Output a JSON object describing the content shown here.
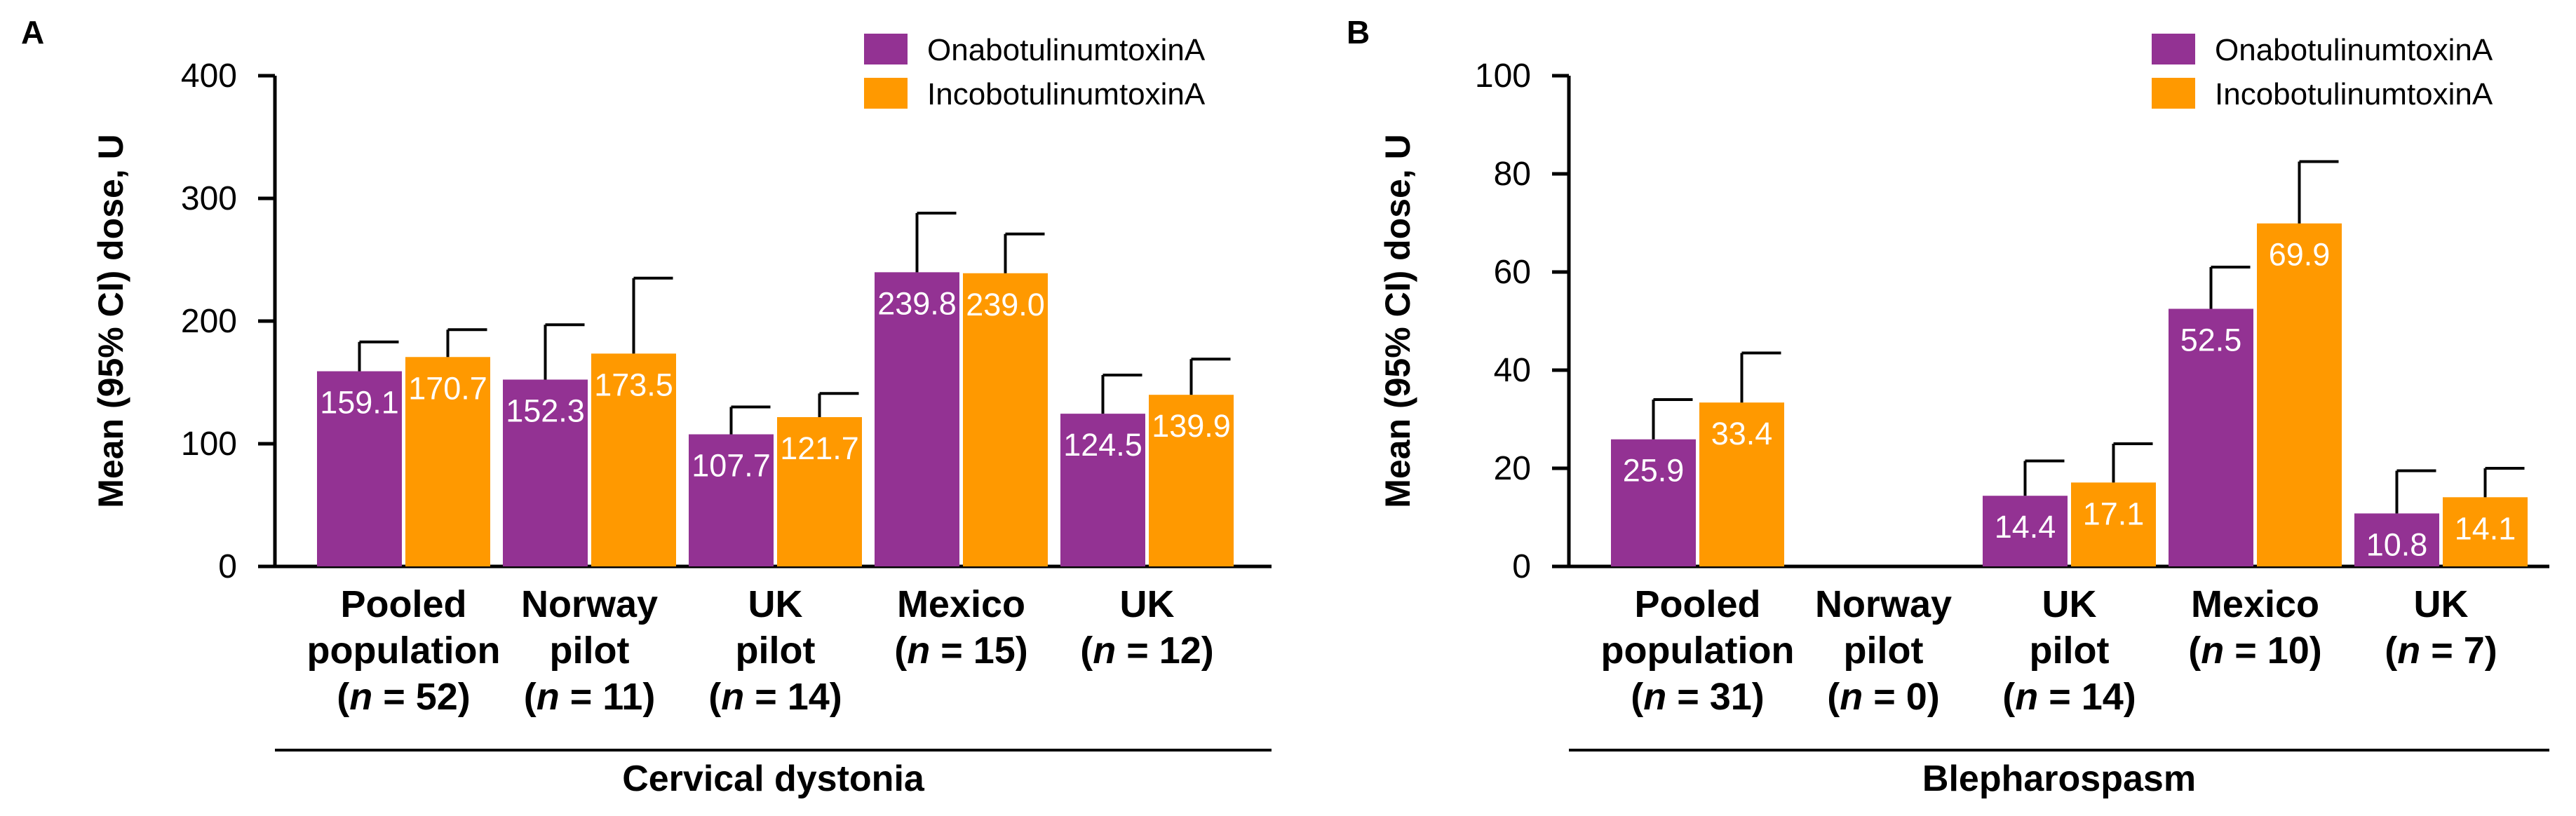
{
  "colors": {
    "onabotulinumtoxinA": "#933293",
    "incobotulinumtoxinA": "#FF9900",
    "axis": "#000000",
    "label_text": "#ffffff"
  },
  "chart_data": [
    {
      "panel_label": "A",
      "type": "bar",
      "ylabel": "Mean (95% CI) dose, U",
      "ylim": [
        0,
        400
      ],
      "yticks": [
        "0",
        "100",
        "200",
        "300",
        "400"
      ],
      "group_label": "Cervical dystonia",
      "categories": [
        {
          "lines": [
            "Pooled",
            "population",
            "(n = 52)"
          ]
        },
        {
          "lines": [
            "Norway",
            "pilot",
            "(n = 11)"
          ]
        },
        {
          "lines": [
            "UK",
            "pilot",
            "(n = 14)"
          ]
        },
        {
          "lines": [
            "Mexico",
            "(n = 15)"
          ]
        },
        {
          "lines": [
            "UK",
            "(n = 12)"
          ]
        }
      ],
      "series": [
        {
          "name": "OnabotulinumtoxinA",
          "values": [
            159.1,
            152.3,
            107.7,
            239.8,
            124.5
          ],
          "value_labels": [
            "159.1",
            "152.3",
            "107.7",
            "239.8",
            "124.5"
          ],
          "ci_upper": [
            183,
            197,
            130,
            288,
            156
          ]
        },
        {
          "name": "IncobotulinumtoxinA",
          "values": [
            170.7,
            173.5,
            121.7,
            239.0,
            139.9
          ],
          "value_labels": [
            "170.7",
            "173.5",
            "121.7",
            "239.0",
            "139.9"
          ],
          "ci_upper": [
            193,
            235,
            141,
            271,
            169
          ]
        }
      ]
    },
    {
      "panel_label": "B",
      "type": "bar",
      "ylabel": "Mean (95% CI) dose, U",
      "ylim": [
        0,
        100
      ],
      "yticks": [
        "0",
        "20",
        "40",
        "60",
        "80",
        "100"
      ],
      "group_label": "Blepharospasm",
      "categories": [
        {
          "lines": [
            "Pooled",
            "population",
            "(n = 31)"
          ]
        },
        {
          "lines": [
            "Norway",
            "pilot",
            "(n = 0)"
          ]
        },
        {
          "lines": [
            "UK",
            "pilot",
            "(n = 14)"
          ]
        },
        {
          "lines": [
            "Mexico",
            "(n = 10)"
          ]
        },
        {
          "lines": [
            "UK",
            "(n = 7)"
          ]
        }
      ],
      "series": [
        {
          "name": "OnabotulinumtoxinA",
          "values": [
            25.9,
            null,
            14.4,
            52.5,
            10.8
          ],
          "value_labels": [
            "25.9",
            null,
            "14.4",
            "52.5",
            "10.8"
          ],
          "ci_upper": [
            34,
            null,
            21.5,
            61,
            19.5
          ]
        },
        {
          "name": "IncobotulinumtoxinA",
          "values": [
            33.4,
            null,
            17.1,
            69.9,
            14.1
          ],
          "value_labels": [
            "33.4",
            null,
            "17.1",
            "69.9",
            "14.1"
          ],
          "ci_upper": [
            43.5,
            null,
            25,
            82.5,
            20
          ]
        }
      ]
    }
  ]
}
